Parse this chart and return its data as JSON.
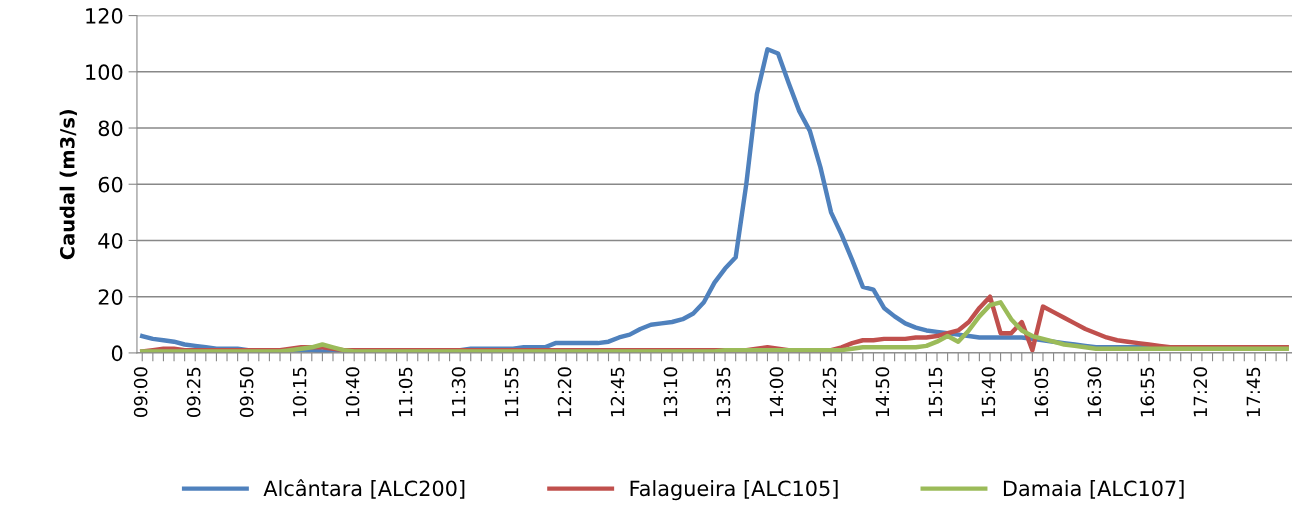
{
  "chart_data": {
    "type": "line",
    "ylabel": "Caudal (m3/s)",
    "categories": [
      "09:00",
      null,
      null,
      null,
      null,
      "09:25",
      null,
      null,
      null,
      null,
      "09:50",
      null,
      null,
      null,
      null,
      "10:15",
      null,
      null,
      null,
      null,
      "10:40",
      null,
      null,
      null,
      null,
      "11:05",
      null,
      null,
      null,
      null,
      "11:30",
      null,
      null,
      null,
      null,
      "11:55",
      null,
      null,
      null,
      null,
      "12:20",
      null,
      null,
      null,
      null,
      "12:45",
      null,
      null,
      null,
      null,
      "13:10",
      null,
      null,
      null,
      null,
      "13:35",
      null,
      null,
      null,
      null,
      "14:00",
      null,
      null,
      null,
      null,
      "14:25",
      null,
      null,
      null,
      null,
      "14:50",
      null,
      null,
      null,
      null,
      "15:15",
      null,
      null,
      null,
      null,
      "15:40",
      null,
      null,
      null,
      null,
      "16:05",
      null,
      null,
      null,
      null,
      "16:30",
      null,
      null,
      null,
      null,
      "16:55",
      null,
      null,
      null,
      null,
      "17:20",
      null,
      null,
      null,
      null,
      "17:45",
      null,
      null,
      null
    ],
    "series": [
      {
        "name": "Alcântara [ALC200]",
        "color": "#4f81bd",
        "values": [
          6,
          5,
          4.5,
          4,
          3,
          2.5,
          2,
          1.5,
          1.5,
          1.5,
          1,
          1,
          1,
          1,
          1,
          1,
          1,
          0.5,
          1,
          1,
          1,
          1,
          1,
          1,
          1,
          1,
          1,
          1,
          1,
          1,
          1,
          1.5,
          1.5,
          1.5,
          1.5,
          1.5,
          2,
          2,
          2,
          3.5,
          3.5,
          3.5,
          3.5,
          3.5,
          4,
          5.5,
          6.5,
          8.5,
          10,
          10.5,
          11,
          12,
          14,
          18,
          25,
          30,
          34,
          60,
          92,
          108,
          106.5,
          96,
          86,
          79,
          66,
          50,
          42,
          33,
          23.5,
          22.5,
          16,
          13,
          10.5,
          9,
          8,
          7.5,
          7,
          6.5,
          6,
          5.5,
          5.5,
          5.5,
          5.5,
          5.5,
          5,
          4.5,
          4,
          3.5,
          3,
          2.5,
          2,
          2,
          2,
          2,
          2,
          2,
          null,
          null,
          null,
          null,
          null,
          null,
          null,
          null,
          null,
          null,
          null,
          null,
          null
        ]
      },
      {
        "name": "Falagueira [ALC105]",
        "color": "#c0504d",
        "values": [
          0.5,
          1,
          1.5,
          1.5,
          1,
          1,
          1,
          1,
          1,
          1,
          1,
          1,
          1,
          1,
          1.5,
          2,
          2,
          2,
          1.5,
          1,
          1,
          1,
          1,
          1,
          1,
          1,
          1,
          1,
          1,
          1,
          1,
          1,
          1,
          1,
          1,
          1,
          1,
          1,
          1,
          1,
          1,
          1,
          1,
          1,
          1,
          1,
          1,
          1,
          1,
          1,
          1,
          1,
          1,
          1,
          1,
          1,
          1,
          1,
          1.5,
          2,
          1.5,
          1,
          1,
          1,
          1,
          1,
          2,
          3.5,
          4.5,
          4.5,
          5,
          5,
          5,
          5.5,
          5.5,
          6,
          7,
          8,
          11,
          16,
          20,
          7,
          7,
          11,
          1,
          16.5,
          14.5,
          12.5,
          10.5,
          8.5,
          7,
          5.5,
          4.5,
          4,
          3.5,
          3,
          2.5,
          2,
          2,
          2,
          2,
          2,
          2,
          2,
          2,
          2,
          2,
          2,
          2
        ]
      },
      {
        "name": "Damaia [ALC107]",
        "color": "#9bbb59",
        "values": [
          0.5,
          0.5,
          0.5,
          0.5,
          0.5,
          0.5,
          0.5,
          0.5,
          0.5,
          0.5,
          0.5,
          0.5,
          0.5,
          0.5,
          1,
          1.5,
          2,
          3,
          2,
          1,
          0.5,
          0.5,
          0.5,
          0.5,
          0.5,
          0.5,
          0.5,
          0.5,
          0.5,
          0.5,
          0.5,
          0.5,
          0.5,
          0.5,
          0.5,
          0.5,
          0.5,
          0.5,
          0.5,
          0.5,
          0.5,
          0.5,
          0.5,
          0.5,
          0.5,
          0.5,
          0.5,
          0.5,
          0.5,
          0.5,
          0.5,
          0.5,
          0.5,
          0.5,
          0.5,
          1,
          1,
          1,
          1,
          1,
          1,
          1,
          1,
          1,
          1,
          1,
          1,
          1.5,
          2,
          2,
          2,
          2,
          2,
          2,
          2.5,
          4,
          6,
          4,
          8,
          13,
          17,
          18,
          12,
          8,
          6,
          5,
          4,
          3,
          2.5,
          2,
          1.5,
          1.5,
          1.5,
          1.5,
          1.5,
          1.5,
          1.5,
          1.5,
          1.5,
          1.5,
          1.5,
          1.5,
          1.5,
          1.5,
          1.5,
          1.5,
          1.5,
          1.5,
          1.5
        ]
      }
    ],
    "ylim": [
      0,
      120
    ],
    "yticks": [
      0,
      20,
      40,
      60,
      80,
      100,
      120
    ],
    "grid": "y",
    "legend": "bottom",
    "marker": "none",
    "line_style": "solid"
  }
}
